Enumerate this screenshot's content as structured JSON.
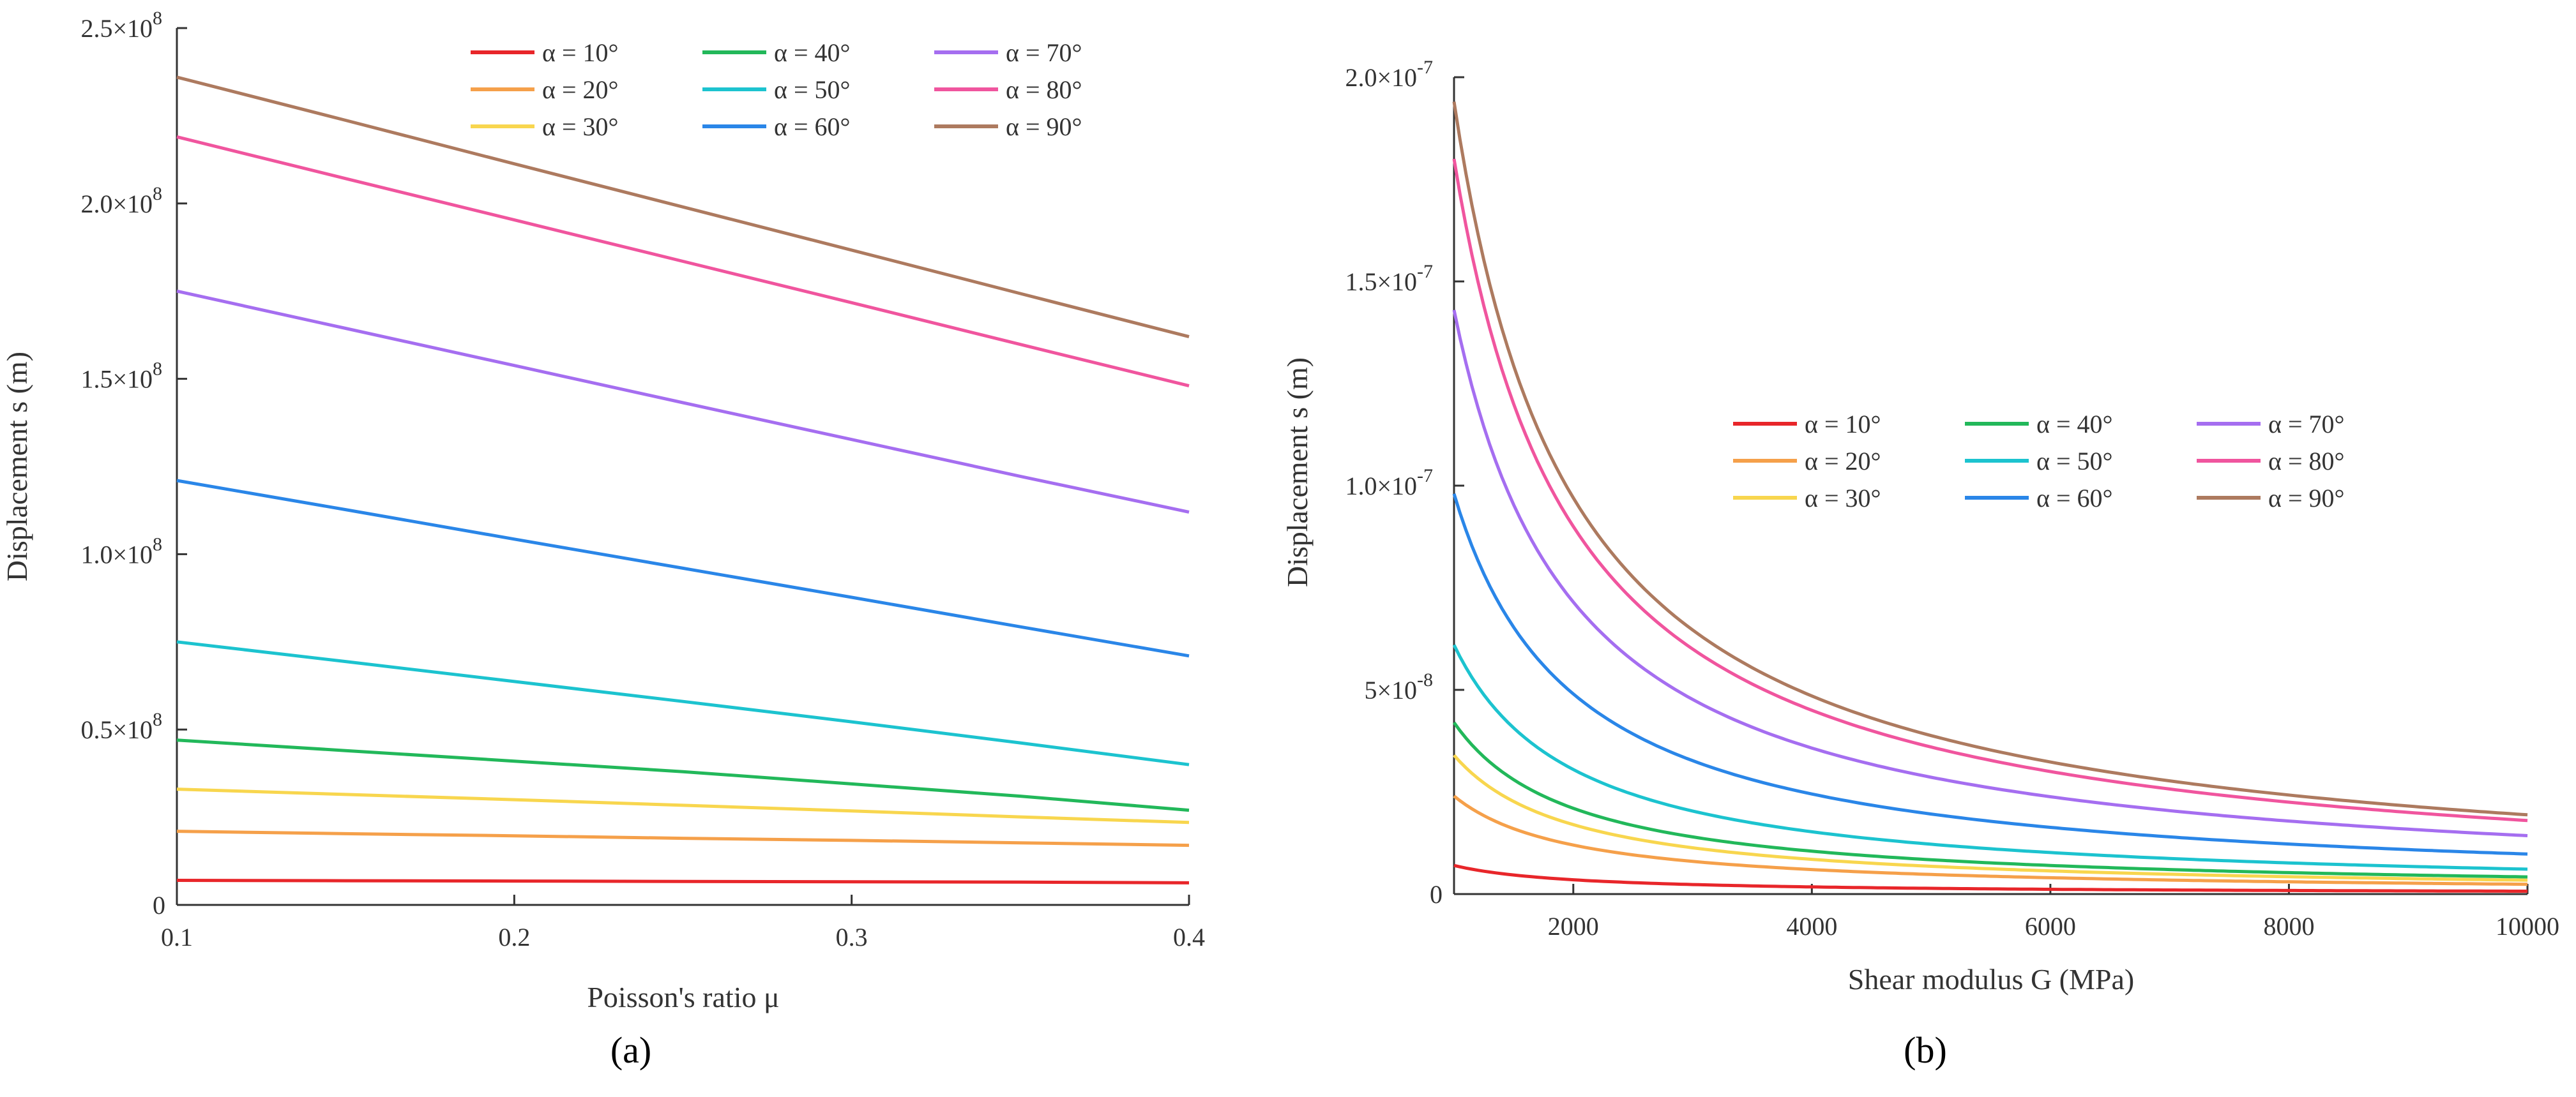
{
  "chart_data": [
    {
      "type": "line",
      "panel_label": "(a)",
      "xlabel": "Poisson's ratio μ",
      "ylabel": "Displacement s (m)",
      "xlim": [
        0.1,
        0.4
      ],
      "ylim": [
        0,
        250000000.0
      ],
      "x_ticks": [
        0.1,
        0.2,
        0.3,
        0.4
      ],
      "x_tick_labels": [
        "0.1",
        "0.2",
        "0.3",
        "0.4"
      ],
      "y_ticks": [
        0,
        50000000.0,
        100000000.0,
        150000000.0,
        200000000.0,
        250000000.0
      ],
      "y_tick_labels": [
        "0",
        "0.5×10",
        "1.0×10",
        "1.5×10",
        "2.0×10",
        "2.5×10"
      ],
      "y_tick_exponents": [
        "",
        "8",
        "8",
        "8",
        "8",
        "8"
      ],
      "grid": false,
      "legend_position": "top-right",
      "x": [
        0.1,
        0.15,
        0.2,
        0.25,
        0.3,
        0.35,
        0.4
      ],
      "series": [
        {
          "name": "α = 10°",
          "color": "#e8262a",
          "values": [
            7000000.0,
            6900000.0,
            6800000.0,
            6700000.0,
            6600000.0,
            6500000.0,
            6300000.0
          ]
        },
        {
          "name": "α = 20°",
          "color": "#f5a04a",
          "values": [
            21000000.0,
            20300000.0,
            19700000.0,
            19000000.0,
            18400000.0,
            17700000.0,
            17000000.0
          ]
        },
        {
          "name": "α = 30°",
          "color": "#f8d64e",
          "values": [
            33000000.0,
            31500000.0,
            30000000.0,
            28400000.0,
            26800000.0,
            25100000.0,
            23500000.0
          ]
        },
        {
          "name": "α = 40°",
          "color": "#22b85a",
          "values": [
            47000000.0,
            44000000.0,
            41000000.0,
            38000000.0,
            34500000.0,
            31000000.0,
            27000000.0
          ]
        },
        {
          "name": "α = 50°",
          "color": "#1cc3cf",
          "values": [
            75000000.0,
            69400000.0,
            63700000.0,
            58000000.0,
            52200000.0,
            46200000.0,
            40000000.0
          ]
        },
        {
          "name": "α = 60°",
          "color": "#2a86e8",
          "values": [
            121000000.0,
            112700000.0,
            104300000.0,
            96000000.0,
            87700000.0,
            79300000.0,
            71000000.0
          ]
        },
        {
          "name": "α = 70°",
          "color": "#a56ef0",
          "values": [
            175000000.0,
            164400000.0,
            153800000.0,
            143200000.0,
            132700000.0,
            122200000.0,
            112000000.0
          ]
        },
        {
          "name": "α = 80°",
          "color": "#f0559e",
          "values": [
            219000000.0,
            207100000.0,
            195300000.0,
            183500000.0,
            171700000.0,
            159800000.0,
            148000000.0
          ]
        },
        {
          "name": "α = 90°",
          "color": "#ad7a5f",
          "values": [
            236000000.0,
            223700000.0,
            211300000.0,
            199000000.0,
            186700000.0,
            174300000.0,
            162000000.0
          ]
        }
      ]
    },
    {
      "type": "line",
      "panel_label": "(b)",
      "xlabel": "Shear modulus G (MPa)",
      "ylabel": "Displacement s (m)",
      "xlim": [
        1000,
        10000
      ],
      "ylim": [
        0,
        2e-07
      ],
      "x_ticks": [
        2000,
        4000,
        6000,
        8000,
        10000
      ],
      "x_tick_labels": [
        "2000",
        "4000",
        "6000",
        "8000",
        "10000"
      ],
      "y_ticks": [
        0,
        5e-08,
        1e-07,
        1.5e-07,
        2e-07
      ],
      "y_tick_labels": [
        "0",
        "5×10",
        "1.0×10",
        "1.5×10",
        "2.0×10"
      ],
      "y_tick_exponents": [
        "",
        "-8",
        "-7",
        "-7",
        "-7"
      ],
      "grid": false,
      "legend_position": "center-right",
      "x": [
        1000,
        1250,
        1500,
        1750,
        2000,
        2500,
        3000,
        3500,
        4000,
        5000,
        6000,
        7000,
        8000,
        9000,
        10000
      ],
      "series": [
        {
          "name": "α = 10°",
          "color": "#e8262a",
          "values": [
            7e-09,
            5.6e-09,
            4.67e-09,
            4e-09,
            3.5e-09,
            2.8e-09,
            2.33e-09,
            2e-09,
            1.75e-09,
            1.4e-09,
            1.17e-09,
            1e-09,
            8.8e-10,
            7.8e-10,
            7e-10
          ]
        },
        {
          "name": "α = 20°",
          "color": "#f5a04a",
          "values": [
            2.4e-08,
            1.92e-08,
            1.6e-08,
            1.37e-08,
            1.2e-08,
            9.6e-09,
            8e-09,
            6.86e-09,
            6e-09,
            4.8e-09,
            4e-09,
            3.43e-09,
            3e-09,
            2.67e-09,
            2.4e-09
          ]
        },
        {
          "name": "α = 30°",
          "color": "#f8d64e",
          "values": [
            3.4e-08,
            2.72e-08,
            2.27e-08,
            1.94e-08,
            1.7e-08,
            1.36e-08,
            1.13e-08,
            9.71e-09,
            8.5e-09,
            6.8e-09,
            5.67e-09,
            4.86e-09,
            4.25e-09,
            3.78e-09,
            3.4e-09
          ]
        },
        {
          "name": "α = 40°",
          "color": "#22b85a",
          "values": [
            4.2e-08,
            3.36e-08,
            2.8e-08,
            2.4e-08,
            2.1e-08,
            1.68e-08,
            1.4e-08,
            1.2e-08,
            1.05e-08,
            8.4e-09,
            7e-09,
            6e-09,
            5.25e-09,
            4.67e-09,
            4.2e-09
          ]
        },
        {
          "name": "α = 50°",
          "color": "#1cc3cf",
          "values": [
            6.1e-08,
            4.88e-08,
            4.07e-08,
            3.49e-08,
            3.05e-08,
            2.44e-08,
            2.03e-08,
            1.74e-08,
            1.53e-08,
            1.22e-08,
            1.02e-08,
            8.71e-09,
            7.63e-09,
            6.78e-09,
            6.1e-09
          ]
        },
        {
          "name": "α = 60°",
          "color": "#2a86e8",
          "values": [
            9.8e-08,
            7.84e-08,
            6.53e-08,
            5.6e-08,
            4.9e-08,
            3.92e-08,
            3.27e-08,
            2.8e-08,
            2.45e-08,
            1.96e-08,
            1.63e-08,
            1.4e-08,
            1.23e-08,
            1.09e-08,
            9.8e-09
          ]
        },
        {
          "name": "α = 70°",
          "color": "#a56ef0",
          "values": [
            1.43e-07,
            1.144e-07,
            9.53e-08,
            8.17e-08,
            7.15e-08,
            5.72e-08,
            4.77e-08,
            4.09e-08,
            3.58e-08,
            2.86e-08,
            2.38e-08,
            2.04e-08,
            1.79e-08,
            1.59e-08,
            1.43e-08
          ]
        },
        {
          "name": "α = 80°",
          "color": "#f0559e",
          "values": [
            1.8e-07,
            1.44e-07,
            1.2e-07,
            1.03e-07,
            9e-08,
            7.2e-08,
            6e-08,
            5.14e-08,
            4.5e-08,
            3.6e-08,
            3e-08,
            2.57e-08,
            2.25e-08,
            2e-08,
            1.8e-08
          ]
        },
        {
          "name": "α = 90°",
          "color": "#ad7a5f",
          "values": [
            1.94e-07,
            1.552e-07,
            1.293e-07,
            1.109e-07,
            9.7e-08,
            7.76e-08,
            6.47e-08,
            5.54e-08,
            4.85e-08,
            3.88e-08,
            3.23e-08,
            2.77e-08,
            2.43e-08,
            2.16e-08,
            1.94e-08
          ]
        }
      ]
    }
  ]
}
